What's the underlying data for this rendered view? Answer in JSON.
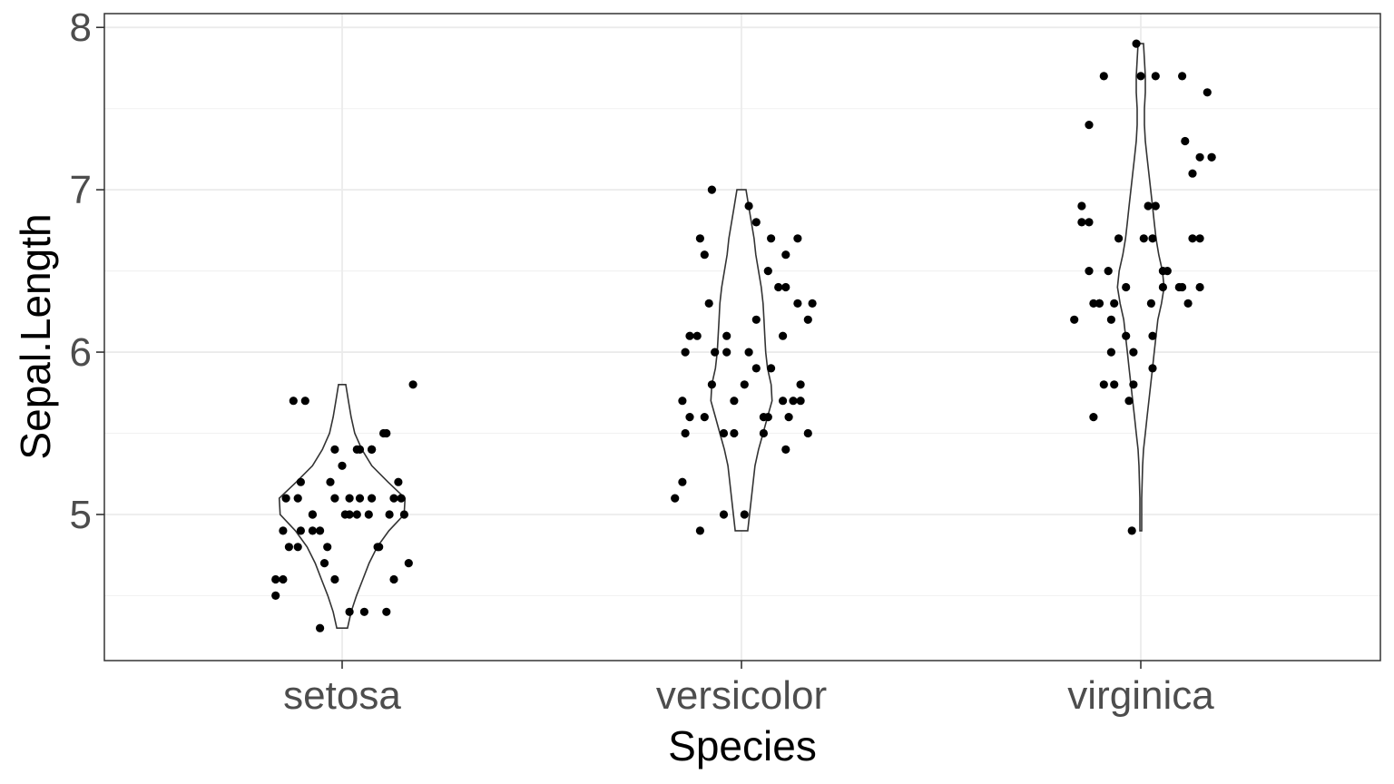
{
  "chart_data": {
    "type": "violin",
    "xlabel": "Species",
    "ylabel": "Sepal.Length",
    "categories": [
      "setosa",
      "versicolor",
      "virginica"
    ],
    "ylim": [
      4.1,
      8.085
    ],
    "y_ticks": [
      "5",
      "6",
      "7",
      "8"
    ],
    "grid": true,
    "colors": {
      "points": "#000000",
      "violin_outline": "#333333",
      "grid": "#ebebeb",
      "panel_border": "#333333",
      "tick_label": "#4d4d4d"
    },
    "violins": [
      {
        "category": "setosa",
        "range": [
          4.3,
          5.8
        ],
        "profile": [
          [
            4.3,
            0.06
          ],
          [
            4.4,
            0.1
          ],
          [
            4.5,
            0.16
          ],
          [
            4.6,
            0.23
          ],
          [
            4.7,
            0.3
          ],
          [
            4.8,
            0.39
          ],
          [
            4.9,
            0.52
          ],
          [
            5.0,
            0.69
          ],
          [
            5.1,
            0.7
          ],
          [
            5.2,
            0.51
          ],
          [
            5.3,
            0.33
          ],
          [
            5.4,
            0.22
          ],
          [
            5.5,
            0.14
          ],
          [
            5.6,
            0.1
          ],
          [
            5.7,
            0.07
          ],
          [
            5.8,
            0.04
          ]
        ]
      },
      {
        "category": "versicolor",
        "range": [
          4.9,
          7.0
        ],
        "profile": [
          [
            4.9,
            0.07
          ],
          [
            5.0,
            0.09
          ],
          [
            5.1,
            0.11
          ],
          [
            5.2,
            0.13
          ],
          [
            5.3,
            0.15
          ],
          [
            5.4,
            0.19
          ],
          [
            5.5,
            0.24
          ],
          [
            5.6,
            0.29
          ],
          [
            5.7,
            0.34
          ],
          [
            5.8,
            0.33
          ],
          [
            5.9,
            0.29
          ],
          [
            6.0,
            0.27
          ],
          [
            6.1,
            0.26
          ],
          [
            6.2,
            0.25
          ],
          [
            6.3,
            0.24
          ],
          [
            6.4,
            0.22
          ],
          [
            6.5,
            0.19
          ],
          [
            6.6,
            0.16
          ],
          [
            6.7,
            0.14
          ],
          [
            6.8,
            0.11
          ],
          [
            6.9,
            0.08
          ],
          [
            7.0,
            0.05
          ]
        ]
      },
      {
        "category": "virginica",
        "range": [
          4.9,
          7.9
        ],
        "profile": [
          [
            4.9,
            0.01
          ],
          [
            5.1,
            0.01
          ],
          [
            5.3,
            0.02
          ],
          [
            5.4,
            0.03
          ],
          [
            5.5,
            0.05
          ],
          [
            5.6,
            0.07
          ],
          [
            5.7,
            0.09
          ],
          [
            5.8,
            0.11
          ],
          [
            5.9,
            0.13
          ],
          [
            6.0,
            0.15
          ],
          [
            6.1,
            0.17
          ],
          [
            6.2,
            0.19
          ],
          [
            6.3,
            0.23
          ],
          [
            6.4,
            0.26
          ],
          [
            6.5,
            0.24
          ],
          [
            6.6,
            0.2
          ],
          [
            6.7,
            0.17
          ],
          [
            6.8,
            0.15
          ],
          [
            6.9,
            0.13
          ],
          [
            7.0,
            0.11
          ],
          [
            7.1,
            0.09
          ],
          [
            7.2,
            0.07
          ],
          [
            7.3,
            0.05
          ],
          [
            7.4,
            0.04
          ],
          [
            7.5,
            0.04
          ],
          [
            7.6,
            0.05
          ],
          [
            7.7,
            0.05
          ],
          [
            7.8,
            0.04
          ],
          [
            7.9,
            0.03
          ]
        ]
      }
    ],
    "points": [
      {
        "category": "setosa",
        "values": [
          [
            -0.38,
            5.1
          ],
          [
            -0.28,
            4.9
          ],
          [
            -0.12,
            4.7
          ],
          [
            -0.05,
            4.6
          ],
          [
            0.1,
            5.0
          ],
          [
            0.2,
            5.4
          ],
          [
            -0.4,
            4.6
          ],
          [
            0.02,
            5.0
          ],
          [
            0.3,
            4.4
          ],
          [
            -0.2,
            4.9
          ],
          [
            0.12,
            5.4
          ],
          [
            -0.3,
            4.8
          ],
          [
            0.24,
            4.8
          ],
          [
            -0.15,
            4.3
          ],
          [
            0.48,
            5.8
          ],
          [
            -0.25,
            5.7
          ],
          [
            0.1,
            5.4
          ],
          [
            0.05,
            5.1
          ],
          [
            -0.33,
            5.7
          ],
          [
            0.4,
            5.1
          ],
          [
            -0.05,
            5.4
          ],
          [
            0.35,
            5.1
          ],
          [
            -0.45,
            4.6
          ],
          [
            0.2,
            5.1
          ],
          [
            -0.1,
            4.8
          ],
          [
            0.32,
            5.0
          ],
          [
            -0.2,
            5.0
          ],
          [
            0.38,
            5.2
          ],
          [
            -0.28,
            5.2
          ],
          [
            0.45,
            4.7
          ],
          [
            -0.36,
            4.8
          ],
          [
            0.2,
            5.4
          ],
          [
            -0.08,
            5.2
          ],
          [
            0.28,
            5.5
          ],
          [
            -0.4,
            4.9
          ],
          [
            0.05,
            5.0
          ],
          [
            0.3,
            5.5
          ],
          [
            -0.15,
            4.9
          ],
          [
            0.15,
            4.4
          ],
          [
            -0.3,
            5.1
          ],
          [
            0.42,
            5.0
          ],
          [
            -0.45,
            4.5
          ],
          [
            0.05,
            4.4
          ],
          [
            -0.2,
            5.0
          ],
          [
            0.12,
            5.1
          ],
          [
            0.25,
            4.8
          ],
          [
            -0.05,
            5.1
          ],
          [
            0.35,
            4.6
          ],
          [
            0.0,
            5.3
          ],
          [
            0.18,
            5.0
          ]
        ]
      },
      {
        "category": "versicolor",
        "values": [
          [
            -0.2,
            7.0
          ],
          [
            0.3,
            6.4
          ],
          [
            0.05,
            6.9
          ],
          [
            -0.12,
            5.5
          ],
          [
            0.18,
            6.5
          ],
          [
            -0.05,
            5.7
          ],
          [
            0.38,
            6.3
          ],
          [
            -0.28,
            4.9
          ],
          [
            0.3,
            6.6
          ],
          [
            -0.4,
            5.2
          ],
          [
            0.02,
            5.0
          ],
          [
            0.2,
            5.9
          ],
          [
            -0.1,
            6.0
          ],
          [
            0.28,
            6.1
          ],
          [
            -0.35,
            5.6
          ],
          [
            0.38,
            6.7
          ],
          [
            0.15,
            5.6
          ],
          [
            -0.2,
            5.8
          ],
          [
            0.45,
            6.2
          ],
          [
            -0.25,
            5.6
          ],
          [
            0.1,
            5.9
          ],
          [
            -0.35,
            6.1
          ],
          [
            0.48,
            6.3
          ],
          [
            -0.1,
            6.1
          ],
          [
            0.25,
            6.4
          ],
          [
            -0.25,
            6.6
          ],
          [
            0.1,
            6.8
          ],
          [
            -0.28,
            6.7
          ],
          [
            0.05,
            6.0
          ],
          [
            0.4,
            5.7
          ],
          [
            -0.38,
            5.5
          ],
          [
            0.45,
            5.5
          ],
          [
            0.02,
            5.8
          ],
          [
            -0.18,
            6.0
          ],
          [
            0.3,
            5.4
          ],
          [
            -0.38,
            6.0
          ],
          [
            0.2,
            6.7
          ],
          [
            -0.22,
            6.3
          ],
          [
            0.18,
            5.6
          ],
          [
            -0.05,
            5.5
          ],
          [
            0.15,
            5.5
          ],
          [
            -0.3,
            6.1
          ],
          [
            0.4,
            5.8
          ],
          [
            -0.12,
            5.0
          ],
          [
            0.32,
            5.6
          ],
          [
            -0.4,
            5.7
          ],
          [
            0.28,
            5.7
          ],
          [
            0.1,
            6.2
          ],
          [
            -0.45,
            5.1
          ],
          [
            0.35,
            5.7
          ]
        ]
      },
      {
        "category": "virginica",
        "values": [
          [
            0.07,
            6.3
          ],
          [
            -0.25,
            5.8
          ],
          [
            0.35,
            7.1
          ],
          [
            -0.18,
            6.3
          ],
          [
            -0.35,
            6.5
          ],
          [
            0.45,
            7.6
          ],
          [
            -0.06,
            4.9
          ],
          [
            0.3,
            7.3
          ],
          [
            0.08,
            6.7
          ],
          [
            0.48,
            7.2
          ],
          [
            -0.22,
            6.5
          ],
          [
            0.26,
            6.4
          ],
          [
            -0.4,
            6.8
          ],
          [
            -0.08,
            5.7
          ],
          [
            -0.18,
            5.8
          ],
          [
            0.4,
            6.4
          ],
          [
            0.18,
            6.5
          ],
          [
            -0.25,
            7.7
          ],
          [
            0.0,
            7.7
          ],
          [
            -0.05,
            6.0
          ],
          [
            0.1,
            6.9
          ],
          [
            -0.32,
            5.6
          ],
          [
            0.1,
            7.7
          ],
          [
            0.32,
            6.3
          ],
          [
            -0.15,
            6.7
          ],
          [
            0.4,
            7.2
          ],
          [
            -0.2,
            6.2
          ],
          [
            0.08,
            6.1
          ],
          [
            -0.1,
            6.4
          ],
          [
            0.48,
            7.2
          ],
          [
            -0.35,
            7.4
          ],
          [
            -0.03,
            7.9
          ],
          [
            0.28,
            6.4
          ],
          [
            -0.28,
            6.3
          ],
          [
            -0.1,
            6.1
          ],
          [
            0.28,
            7.7
          ],
          [
            -0.32,
            6.3
          ],
          [
            0.15,
            6.4
          ],
          [
            -0.2,
            6.0
          ],
          [
            0.05,
            6.9
          ],
          [
            0.35,
            6.7
          ],
          [
            -0.4,
            6.9
          ],
          [
            -0.05,
            5.8
          ],
          [
            -0.35,
            6.8
          ],
          [
            0.4,
            6.7
          ],
          [
            0.02,
            6.7
          ],
          [
            -0.28,
            6.3
          ],
          [
            0.15,
            6.5
          ],
          [
            -0.45,
            6.2
          ],
          [
            0.08,
            5.9
          ]
        ]
      }
    ]
  }
}
